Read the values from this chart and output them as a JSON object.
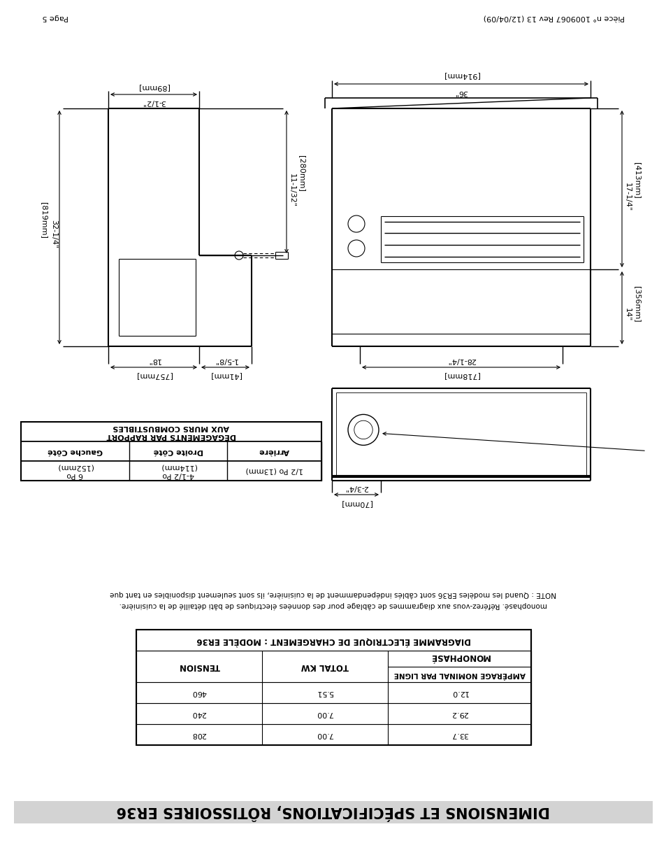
{
  "page_header_left": "Page 5",
  "page_header_right": "Pièce n° 1009067 Rev 13 (12/04/09)",
  "title": "DIMENSIONS ET SPÉCIFICATIONS, RÔTISSOIRES ER36",
  "title_bg": "#d3d3d3",
  "note_line1": "NOTE : Quand les modèles ER36 sont câblés indépendamment de la cuisinière, ils sont seulement disponibles en tant que",
  "note_line2": "monophasé. Référez-vous aux diagrammes de câblage pour des données électriques de bâti détaillé de la cuisinière.",
  "table_title": "DIAGRAMME ÉLECTRIQUE DE CHARGEMENT : MODÈLE ER36",
  "table_header_col1": "TENSION",
  "table_header_col2": "TOTAL KW",
  "table_header_col3": "MONOPHASÉ",
  "table_subheader_col3": "AMPÉRAGE NOMINAL PAR LIGNE",
  "table_rows": [
    [
      "208",
      "7.00",
      "33.7"
    ],
    [
      "240",
      "7.00",
      "29.2"
    ],
    [
      "460",
      "5.51",
      "12.0"
    ]
  ],
  "bg_color": "#ffffff",
  "line_color": "#000000",
  "text_color": "#000000"
}
